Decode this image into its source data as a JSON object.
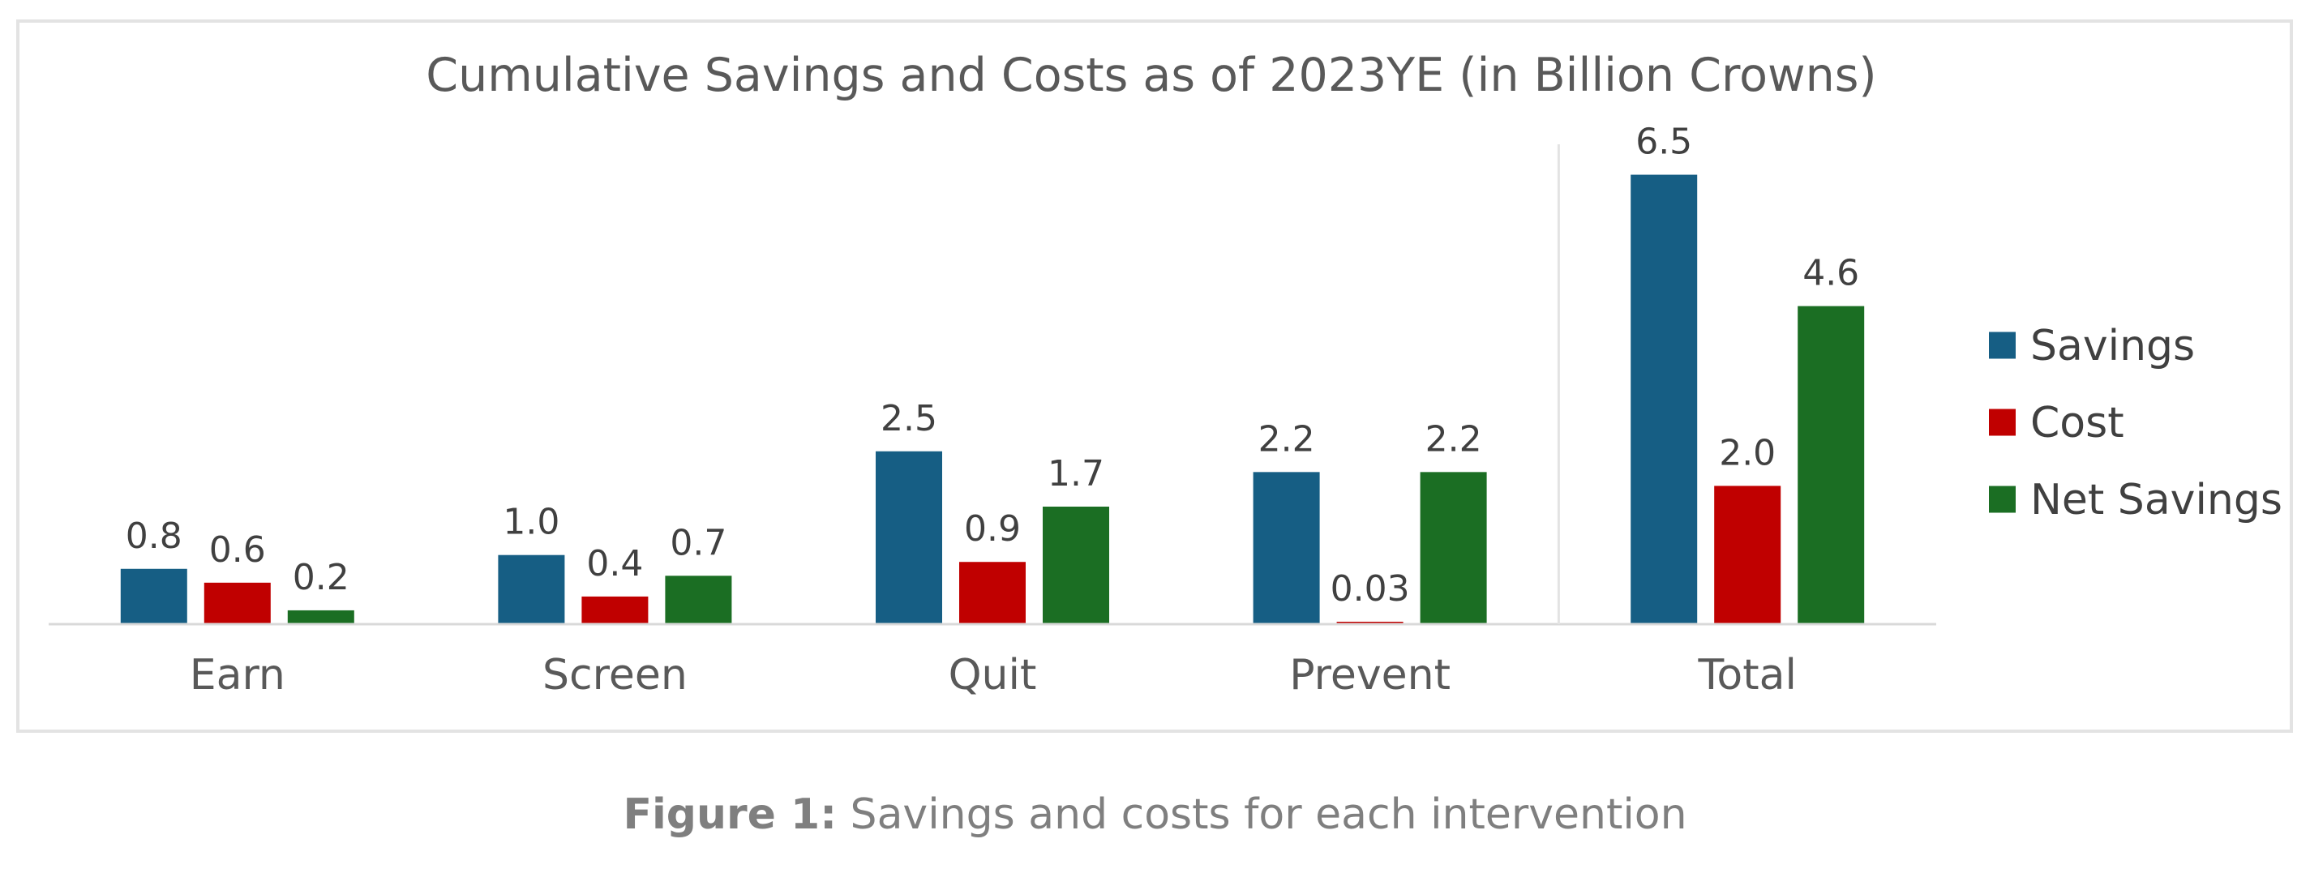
{
  "chart_data": {
    "type": "bar",
    "title": "Cumulative Savings and Costs as of 2023YE  (in Billion Crowns)",
    "categories": [
      "Earn",
      "Screen",
      "Quit",
      "Prevent",
      "Total"
    ],
    "series": [
      {
        "name": "Savings",
        "color": "#165e84",
        "values": [
          0.8,
          1.0,
          2.5,
          2.2,
          6.5
        ],
        "labels": [
          "0.8",
          "1.0",
          "2.5",
          "2.2",
          "6.5"
        ]
      },
      {
        "name": "Cost",
        "color": "#c00000",
        "values": [
          0.6,
          0.4,
          0.9,
          0.03,
          2.0
        ],
        "labels": [
          "0.6",
          "0.4",
          "0.9",
          "0.03",
          "2.0"
        ]
      },
      {
        "name": "Net Savings",
        "color": "#1b6e23",
        "values": [
          0.2,
          0.7,
          1.7,
          2.2,
          4.6
        ],
        "labels": [
          "0.2",
          "0.7",
          "1.7",
          "2.2",
          "4.6"
        ]
      }
    ],
    "ylim": [
      0,
      7
    ],
    "y_axis_visible": false,
    "grid": false,
    "legend_position": "right",
    "separator_before_category": "Total"
  },
  "caption": {
    "label": "Figure 1:",
    "text": " Savings and costs for each intervention"
  }
}
